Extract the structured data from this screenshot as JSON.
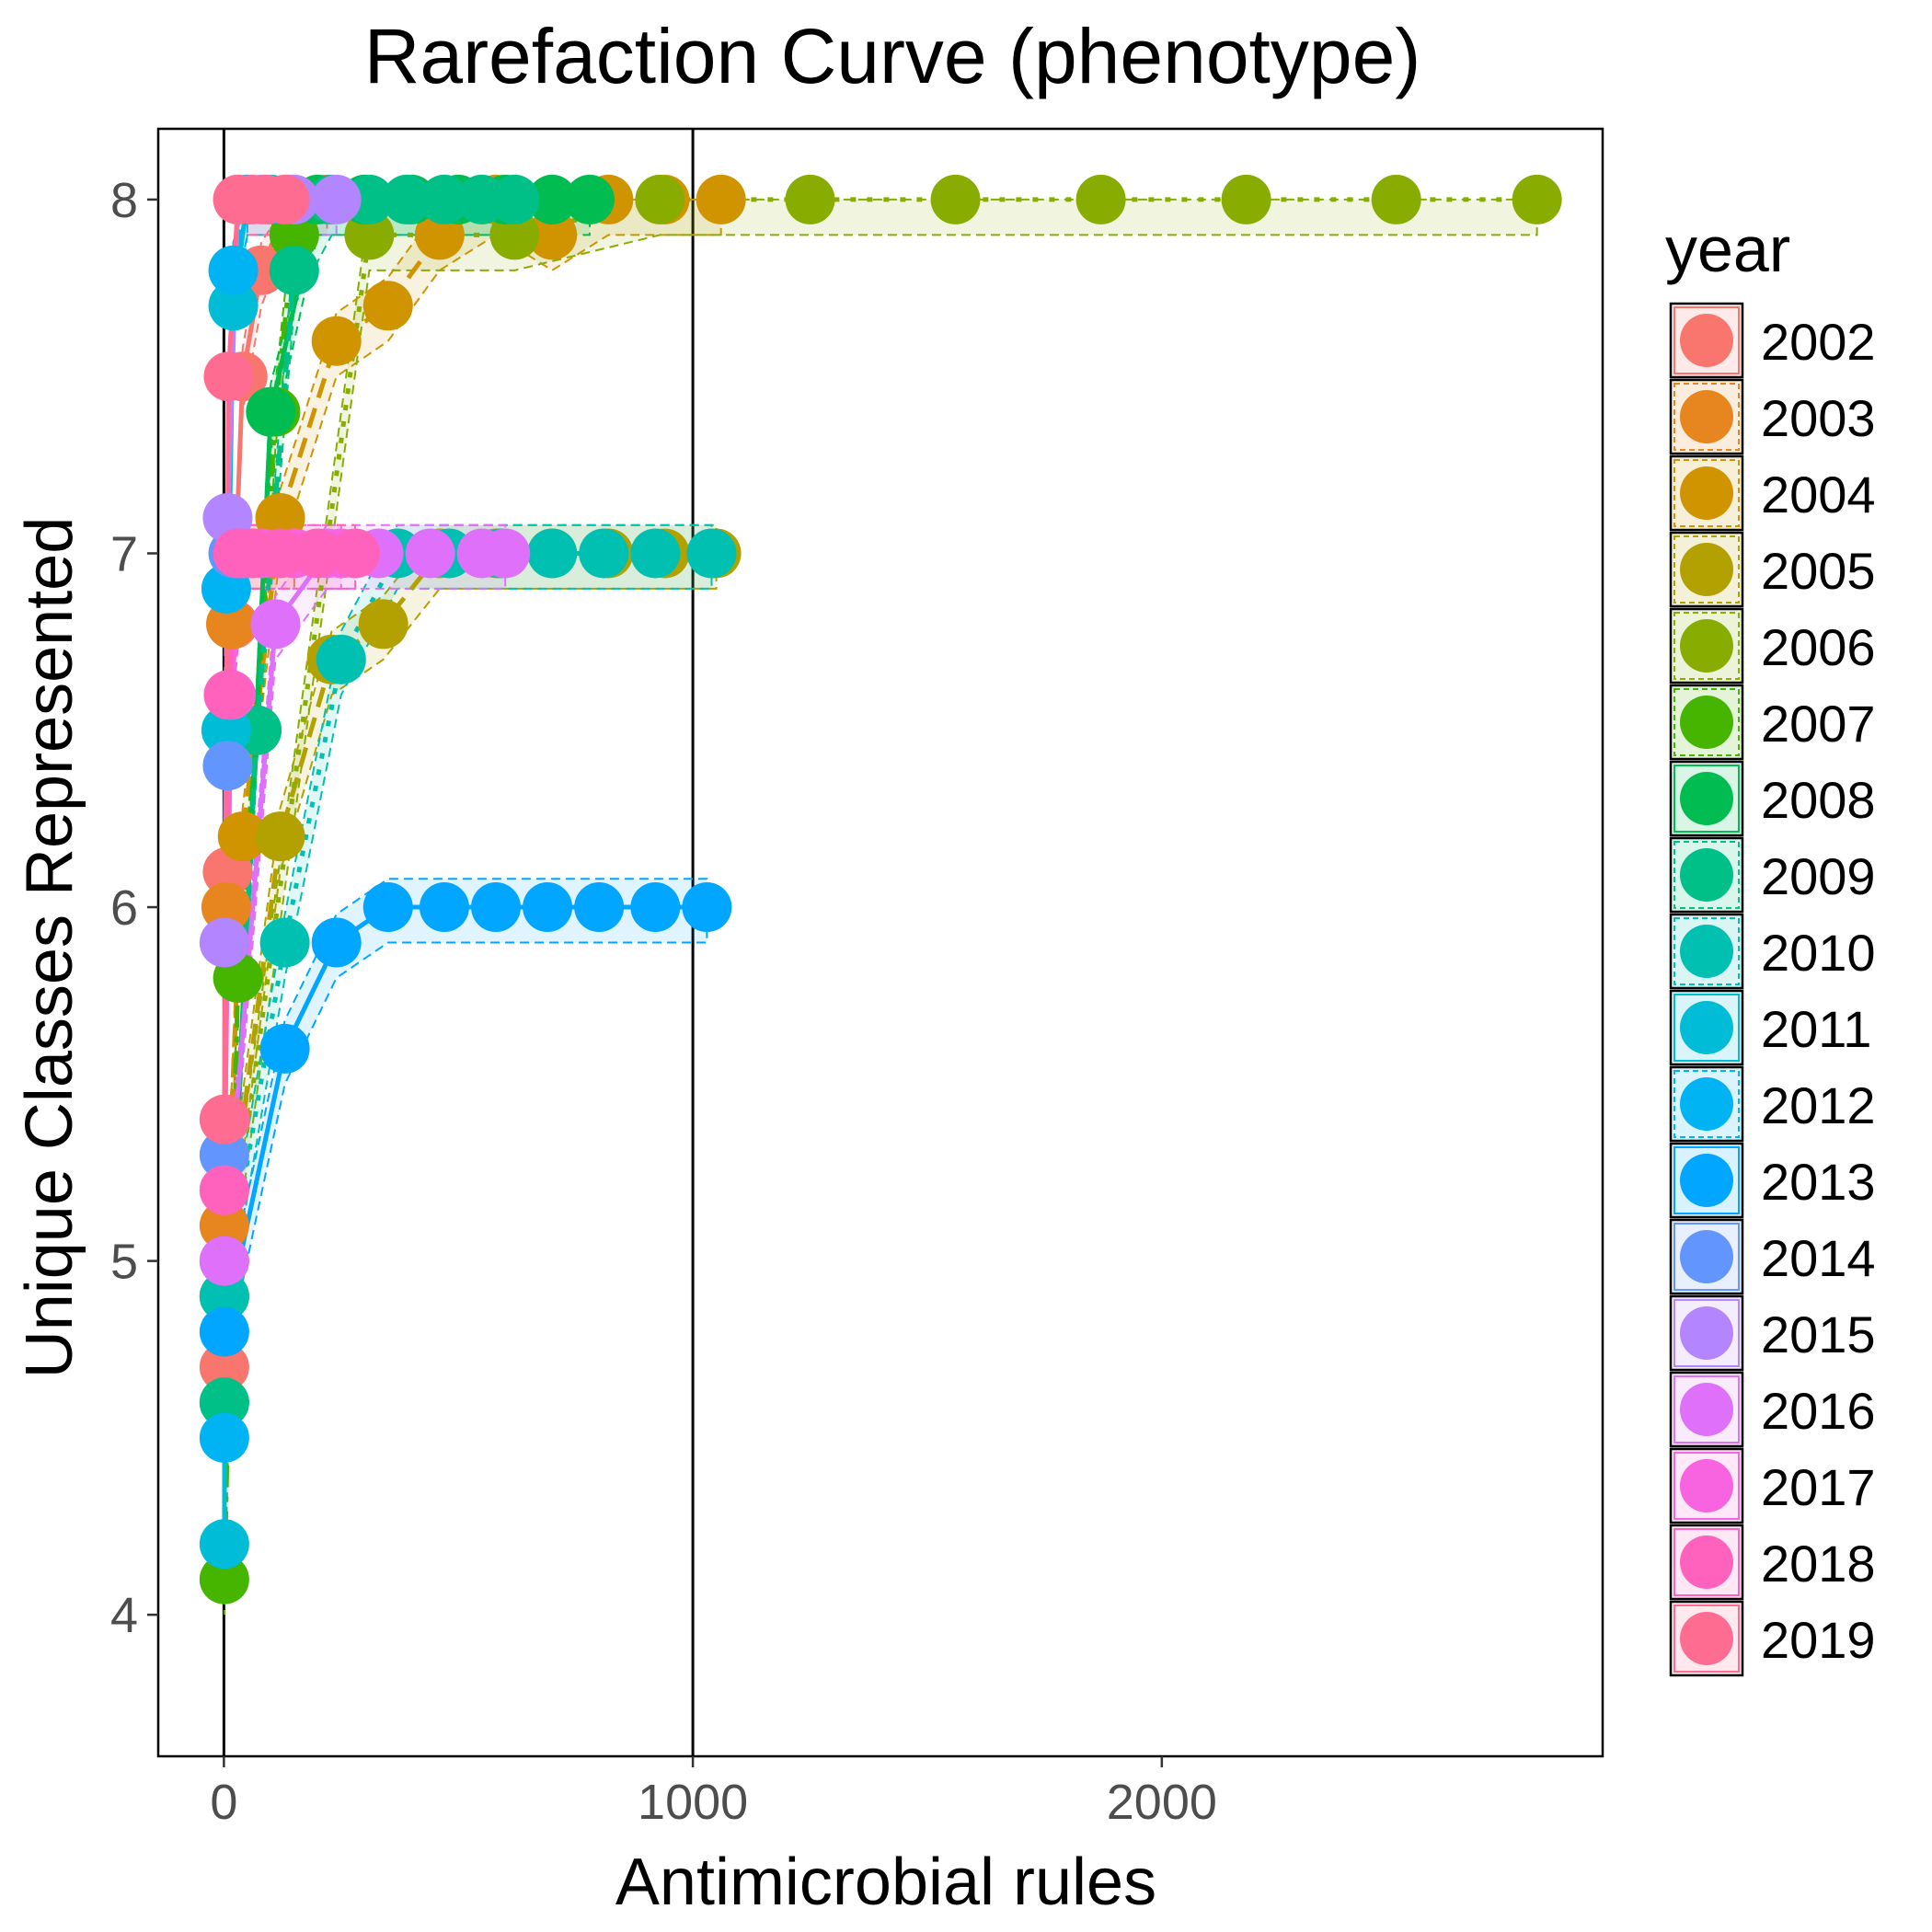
{
  "chart_data": {
    "type": "line",
    "title": "Rarefaction Curve (phenotype)",
    "xlabel": "Antimicrobial rules",
    "ylabel": "Unique Classes Represented",
    "xlim": [
      -140,
      2940
    ],
    "ylim": [
      3.6,
      8.2
    ],
    "x_ticks": [
      0,
      1000,
      2000
    ],
    "x_tick_labels": [
      "0",
      "1000",
      "2000"
    ],
    "y_ticks": [
      4,
      5,
      6,
      7,
      8
    ],
    "y_tick_labels": [
      "4",
      "5",
      "6",
      "7",
      "8"
    ],
    "vertical_reference_lines": [
      0,
      1000
    ],
    "grid": false,
    "legend": {
      "title": "year",
      "position": "right"
    },
    "series": [
      {
        "name": "2002",
        "color": "#F8766D",
        "dash": "solid",
        "x": [
          1,
          3,
          8,
          20,
          40,
          80,
          140,
          220
        ],
        "y": [
          4.7,
          5.4,
          6.1,
          6.8,
          7.5,
          7.8,
          8.0,
          8.0
        ]
      },
      {
        "name": "2003",
        "color": "#E7851E",
        "dash": "dashed",
        "x": [
          1,
          5,
          15,
          35,
          60,
          100,
          150
        ],
        "y": [
          5.1,
          6.0,
          6.8,
          7.0,
          7.0,
          7.0,
          7.0
        ]
      },
      {
        "name": "2004",
        "color": "#D09400",
        "dash": "dashed",
        "x": [
          1,
          40,
          120,
          240,
          350,
          460,
          580,
          700,
          820,
          940,
          1060
        ],
        "y": [
          4.9,
          6.2,
          7.1,
          7.6,
          7.7,
          7.9,
          8.0,
          7.9,
          8.0,
          8.0,
          8.0
        ]
      },
      {
        "name": "2005",
        "color": "#B2A100",
        "dash": "dashed",
        "x": [
          1,
          120,
          230,
          340,
          460,
          580,
          700,
          820,
          940,
          1050
        ],
        "y": [
          5.0,
          6.2,
          6.7,
          6.8,
          7.0,
          7.0,
          7.0,
          7.0,
          7.0,
          7.0
        ]
      },
      {
        "name": "2006",
        "color": "#89AC00",
        "dash": "dotted",
        "x": [
          1,
          310,
          620,
          930,
          1250,
          1560,
          1870,
          2180,
          2500,
          2800
        ],
        "y": [
          4.9,
          7.9,
          7.9,
          8.0,
          8.0,
          8.0,
          8.0,
          8.0,
          8.0,
          8.0
        ]
      },
      {
        "name": "2007",
        "color": "#45B500",
        "dash": "dotdash",
        "x": [
          1,
          30,
          70,
          110,
          150
        ],
        "y": [
          4.1,
          5.8,
          6.5,
          7.4,
          7.9
        ]
      },
      {
        "name": "2008",
        "color": "#00BC51",
        "dash": "solid",
        "x": [
          1,
          100,
          200,
          300,
          400,
          500,
          600,
          700,
          780
        ],
        "y": [
          4.6,
          7.4,
          8.0,
          8.0,
          8.0,
          8.0,
          8.0,
          8.0,
          8.0
        ]
      },
      {
        "name": "2009",
        "color": "#00C087",
        "dash": "dashed",
        "x": [
          1,
          70,
          150,
          230,
          310,
          390,
          470,
          550,
          620
        ],
        "y": [
          4.6,
          6.5,
          7.8,
          8.0,
          8.0,
          8.0,
          8.0,
          8.0,
          8.0
        ]
      },
      {
        "name": "2010",
        "color": "#00C0B2",
        "dash": "dotted",
        "x": [
          1,
          130,
          250,
          370,
          480,
          590,
          700,
          810,
          920,
          1040
        ],
        "y": [
          4.9,
          5.9,
          6.7,
          7.0,
          7.0,
          7.0,
          7.0,
          7.0,
          7.0,
          7.0
        ]
      },
      {
        "name": "2011",
        "color": "#00BCD6",
        "dash": "solid",
        "x": [
          1,
          5,
          20,
          50,
          100
        ],
        "y": [
          4.2,
          6.5,
          7.7,
          8.0,
          8.0
        ]
      },
      {
        "name": "2012",
        "color": "#00B3F2",
        "dash": "dashed",
        "x": [
          1,
          5,
          20,
          50
        ],
        "y": [
          4.5,
          6.9,
          7.8,
          8.0
        ]
      },
      {
        "name": "2013",
        "color": "#00A6FF",
        "dash": "solid",
        "x": [
          1,
          130,
          240,
          350,
          470,
          580,
          690,
          800,
          920,
          1030
        ],
        "y": [
          4.8,
          5.6,
          5.9,
          6.0,
          6.0,
          6.0,
          6.0,
          6.0,
          6.0,
          6.0
        ]
      },
      {
        "name": "2014",
        "color": "#6395FF",
        "dash": "solid",
        "x": [
          1,
          8,
          20,
          40
        ],
        "y": [
          5.3,
          6.4,
          7.0,
          7.0
        ]
      },
      {
        "name": "2015",
        "color": "#B385FF",
        "dash": "solid",
        "x": [
          1,
          8,
          30,
          80,
          150,
          240
        ],
        "y": [
          5.9,
          7.1,
          8.0,
          8.0,
          8.0,
          8.0
        ]
      },
      {
        "name": "2016",
        "color": "#DE70FA",
        "dash": "solid",
        "x": [
          1,
          110,
          220,
          330,
          440,
          550,
          600
        ],
        "y": [
          5.0,
          6.8,
          7.0,
          7.0,
          7.0,
          7.0,
          7.0
        ]
      },
      {
        "name": "2017",
        "color": "#F863DF",
        "dash": "solid",
        "x": [
          1,
          15,
          40,
          80,
          150,
          250
        ],
        "y": [
          5.2,
          6.6,
          7.0,
          7.0,
          7.0,
          7.0
        ]
      },
      {
        "name": "2018",
        "color": "#FF62BC",
        "dash": "solid",
        "x": [
          1,
          10,
          30,
          60,
          120,
          200,
          280
        ],
        "y": [
          5.2,
          6.6,
          7.0,
          7.0,
          7.0,
          7.0,
          7.0
        ]
      },
      {
        "name": "2019",
        "color": "#FF6C91",
        "dash": "solid",
        "x": [
          1,
          10,
          30,
          60,
          90,
          130
        ],
        "y": [
          5.4,
          7.5,
          8.0,
          8.0,
          8.0,
          8.0
        ]
      }
    ]
  }
}
